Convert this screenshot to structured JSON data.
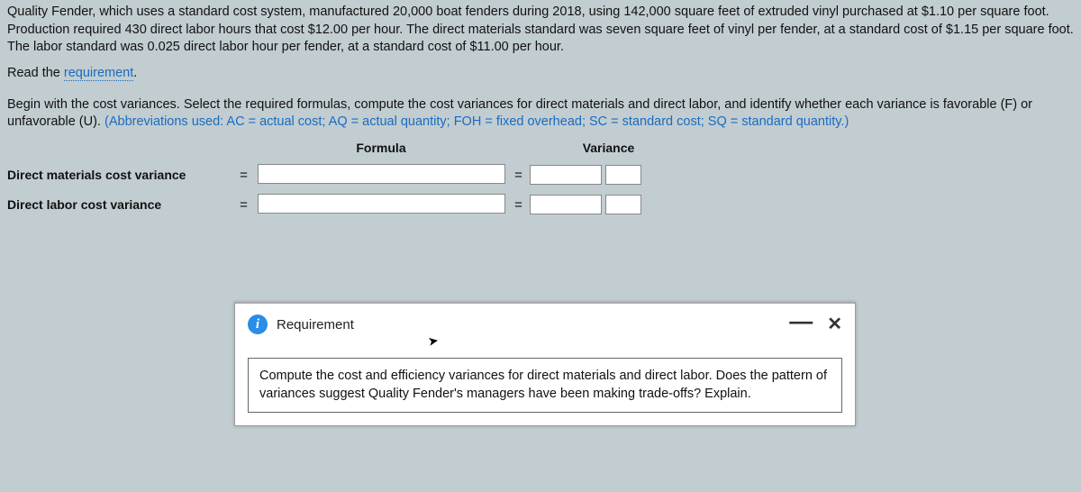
{
  "problem": {
    "text": "Quality Fender, which uses a standard cost system, manufactured 20,000 boat fenders during 2018, using 142,000 square feet of extruded vinyl purchased at $1.10 per square foot. Production required 430 direct labor hours that cost $12.00 per hour. The direct materials standard was seven square feet of vinyl per fender, at a standard cost of $1.15 per square foot. The labor standard was 0.025 direct labor hour per fender, at a standard cost of $11.00 per hour."
  },
  "read_req": {
    "prefix": "Read the ",
    "link": "requirement"
  },
  "instructions": {
    "line1": "Begin with the cost variances. Select the required formulas, compute the cost variances for direct materials and direct labor, and identify whether each variance is favorable (F) or unfavorable (U). ",
    "abbrev": "(Abbreviations used: AC = actual cost; AQ = actual quantity; FOH = fixed overhead; SC = standard cost; SQ = standard quantity.)"
  },
  "table": {
    "formula_header": "Formula",
    "variance_header": "Variance",
    "rows": [
      {
        "label": "Direct materials cost variance"
      },
      {
        "label": "Direct labor cost variance"
      }
    ],
    "equals": "="
  },
  "popup": {
    "title": "Requirement",
    "info_glyph": "i",
    "minimize_glyph": "—",
    "close_glyph": "✕",
    "body": "Compute the cost and efficiency variances for direct materials and direct labor. Does the pattern of variances suggest Quality Fender's managers have been making trade-offs? Explain."
  }
}
